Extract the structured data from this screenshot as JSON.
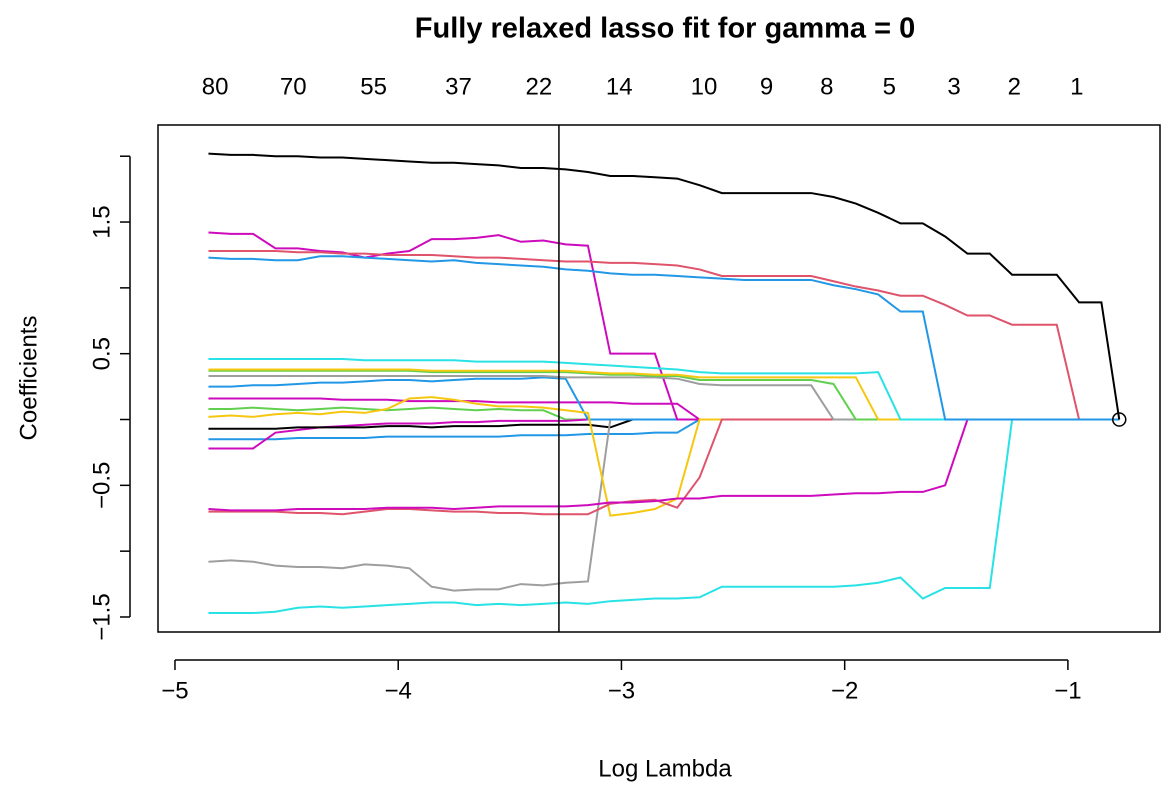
{
  "chart_data": {
    "type": "line",
    "title": "Fully relaxed lasso fit for gamma = 0",
    "x_label": "Log Lambda",
    "y_label": "Coefficients",
    "x": [
      -4.85,
      -4.75,
      -4.65,
      -4.55,
      -4.45,
      -4.35,
      -4.25,
      -4.15,
      -4.05,
      -3.95,
      -3.85,
      -3.75,
      -3.65,
      -3.55,
      -3.45,
      -3.35,
      -3.25,
      -3.15,
      -3.05,
      -2.95,
      -2.85,
      -2.75,
      -2.65,
      -2.55,
      -2.45,
      -2.35,
      -2.25,
      -2.15,
      -2.05,
      -1.95,
      -1.85,
      -1.75,
      -1.65,
      -1.55,
      -1.45,
      -1.35,
      -1.25,
      -1.15,
      -1.05,
      -0.95,
      -0.85,
      -0.77
    ],
    "series": [
      {
        "color": "#CD0BBC",
        "values": [
          0.16,
          0.16,
          0.16,
          0.16,
          0.16,
          0.16,
          0.15,
          0.15,
          0.15,
          0.14,
          0.14,
          0.14,
          0.14,
          0.13,
          0.13,
          0.13,
          0.13,
          0.13,
          0.13,
          0.12,
          0.12,
          0.12,
          0,
          0,
          0,
          0,
          0,
          0,
          0,
          0,
          0,
          0,
          0,
          0,
          0,
          0,
          0,
          0,
          0,
          0,
          0,
          0
        ]
      },
      {
        "color": "#61D04F",
        "values": [
          0.08,
          0.08,
          0.09,
          0.08,
          0.07,
          0.08,
          0.09,
          0.08,
          0.07,
          0.08,
          0.09,
          0.08,
          0.07,
          0.08,
          0.07,
          0.07,
          0,
          0,
          0,
          0,
          0,
          0,
          0,
          0,
          0,
          0,
          0,
          0,
          0,
          0,
          0,
          0,
          0,
          0,
          0,
          0,
          0,
          0,
          0,
          0,
          0,
          0
        ]
      },
      {
        "color": "#2297E6",
        "values": [
          -0.15,
          -0.15,
          -0.15,
          -0.15,
          -0.14,
          -0.14,
          -0.14,
          -0.14,
          -0.13,
          -0.13,
          -0.13,
          -0.13,
          -0.13,
          -0.13,
          -0.12,
          -0.12,
          -0.12,
          -0.11,
          -0.11,
          -0.11,
          -0.1,
          -0.1,
          0,
          0,
          0,
          0,
          0,
          0,
          0,
          0,
          0,
          0,
          0,
          0,
          0,
          0,
          0,
          0,
          0,
          0,
          0,
          0
        ]
      },
      {
        "color": "#CD0BBC",
        "values": [
          -0.22,
          -0.22,
          -0.22,
          -0.1,
          -0.08,
          -0.06,
          -0.05,
          -0.04,
          -0.03,
          -0.03,
          -0.03,
          -0.02,
          -0.02,
          -0.01,
          -0.01,
          -0.01,
          -0.01,
          0,
          0,
          0,
          0,
          0,
          0,
          0,
          0,
          0,
          0,
          0,
          0,
          0,
          0,
          0,
          0,
          0,
          0,
          0,
          0,
          0,
          0,
          0,
          0,
          0
        ]
      },
      {
        "color": "#000000",
        "values": [
          -0.07,
          -0.07,
          -0.07,
          -0.07,
          -0.06,
          -0.06,
          -0.06,
          -0.06,
          -0.05,
          -0.05,
          -0.06,
          -0.05,
          -0.05,
          -0.05,
          -0.04,
          -0.04,
          -0.04,
          -0.04,
          -0.06,
          0,
          0,
          0,
          0,
          0,
          0,
          0,
          0,
          0,
          0,
          0,
          0,
          0,
          0,
          0,
          0,
          0,
          0,
          0,
          0,
          0,
          0,
          0
        ]
      },
      {
        "color": "#9E9E9E",
        "values": [
          -1.08,
          -1.07,
          -1.08,
          -1.11,
          -1.12,
          -1.12,
          -1.13,
          -1.1,
          -1.11,
          -1.13,
          -1.27,
          -1.3,
          -1.29,
          -1.29,
          -1.25,
          -1.26,
          -1.24,
          -1.23,
          0,
          0,
          0,
          0,
          0,
          0,
          0,
          0,
          0,
          0,
          0,
          0,
          0,
          0,
          0,
          0,
          0,
          0,
          0,
          0,
          0,
          0,
          0,
          0
        ]
      },
      {
        "color": "#2297E6",
        "values": [
          0.25,
          0.25,
          0.26,
          0.26,
          0.27,
          0.28,
          0.28,
          0.29,
          0.3,
          0.3,
          0.29,
          0.3,
          0.31,
          0.31,
          0.31,
          0.32,
          0.31,
          0,
          0,
          0,
          0,
          0,
          0,
          0,
          0,
          0,
          0,
          0,
          0,
          0,
          0,
          0,
          0,
          0,
          0,
          0,
          0,
          0,
          0,
          0,
          0,
          0
        ]
      },
      {
        "color": "#CD0BBC",
        "values": [
          1.42,
          1.41,
          1.41,
          1.3,
          1.3,
          1.28,
          1.27,
          1.23,
          1.26,
          1.28,
          1.37,
          1.37,
          1.38,
          1.4,
          1.35,
          1.36,
          1.33,
          1.32,
          0.5,
          0.5,
          0.5,
          0,
          0,
          0,
          0,
          0,
          0,
          0,
          0,
          0,
          0,
          0,
          0,
          0,
          0,
          0,
          0,
          0,
          0,
          0,
          0,
          0
        ]
      },
      {
        "color": "#F5C710",
        "values": [
          0.02,
          0.03,
          0.02,
          0.04,
          0.05,
          0.04,
          0.06,
          0.05,
          0.08,
          0.16,
          0.17,
          0.15,
          0.12,
          0.1,
          0.1,
          0.09,
          0.07,
          0.05,
          -0.73,
          -0.71,
          -0.68,
          -0.6,
          0,
          0,
          0,
          0,
          0,
          0,
          0,
          0,
          0,
          0,
          0,
          0,
          0,
          0,
          0,
          0,
          0,
          0,
          0,
          0
        ]
      },
      {
        "color": "#DF536B",
        "values": [
          -0.7,
          -0.7,
          -0.7,
          -0.7,
          -0.71,
          -0.71,
          -0.72,
          -0.7,
          -0.68,
          -0.68,
          -0.69,
          -0.7,
          -0.7,
          -0.71,
          -0.71,
          -0.72,
          -0.72,
          -0.72,
          -0.64,
          -0.62,
          -0.61,
          -0.67,
          -0.44,
          0,
          0,
          0,
          0,
          0,
          0,
          0,
          0,
          0,
          0,
          0,
          0,
          0,
          0,
          0,
          0,
          0,
          0,
          0
        ]
      },
      {
        "color": "#9E9E9E",
        "values": [
          0.33,
          0.33,
          0.33,
          0.33,
          0.33,
          0.33,
          0.33,
          0.33,
          0.33,
          0.33,
          0.33,
          0.33,
          0.33,
          0.33,
          0.33,
          0.33,
          0.32,
          0.32,
          0.32,
          0.32,
          0.32,
          0.31,
          0.27,
          0.26,
          0.26,
          0.26,
          0.26,
          0.26,
          0,
          0,
          0,
          0,
          0,
          0,
          0,
          0,
          0,
          0,
          0,
          0,
          0,
          0
        ]
      },
      {
        "color": "#61D04F",
        "values": [
          0.37,
          0.37,
          0.37,
          0.37,
          0.37,
          0.37,
          0.37,
          0.37,
          0.37,
          0.37,
          0.36,
          0.36,
          0.36,
          0.36,
          0.36,
          0.36,
          0.36,
          0.35,
          0.34,
          0.34,
          0.33,
          0.33,
          0.3,
          0.3,
          0.3,
          0.3,
          0.3,
          0.3,
          0.27,
          0,
          0,
          0,
          0,
          0,
          0,
          0,
          0,
          0,
          0,
          0,
          0,
          0
        ]
      },
      {
        "color": "#F5C710",
        "values": [
          0.38,
          0.38,
          0.38,
          0.38,
          0.38,
          0.38,
          0.38,
          0.38,
          0.38,
          0.38,
          0.37,
          0.37,
          0.37,
          0.37,
          0.37,
          0.37,
          0.37,
          0.36,
          0.35,
          0.35,
          0.34,
          0.34,
          0.32,
          0.32,
          0.32,
          0.32,
          0.32,
          0.32,
          0.32,
          0.32,
          0,
          0,
          0,
          0,
          0,
          0,
          0,
          0,
          0,
          0,
          0,
          0
        ]
      },
      {
        "color": "#28E2E5",
        "values": [
          0.46,
          0.46,
          0.46,
          0.46,
          0.46,
          0.46,
          0.46,
          0.45,
          0.45,
          0.45,
          0.45,
          0.45,
          0.44,
          0.44,
          0.44,
          0.44,
          0.43,
          0.42,
          0.41,
          0.4,
          0.39,
          0.38,
          0.36,
          0.35,
          0.35,
          0.35,
          0.35,
          0.35,
          0.35,
          0.35,
          0.36,
          0,
          0,
          0,
          0,
          0,
          0,
          0,
          0,
          0,
          0,
          0
        ]
      },
      {
        "color": "#CD0BBC",
        "values": [
          -0.68,
          -0.69,
          -0.69,
          -0.69,
          -0.68,
          -0.68,
          -0.68,
          -0.68,
          -0.67,
          -0.67,
          -0.67,
          -0.68,
          -0.67,
          -0.66,
          -0.66,
          -0.66,
          -0.66,
          -0.65,
          -0.63,
          -0.63,
          -0.62,
          -0.6,
          -0.6,
          -0.58,
          -0.58,
          -0.58,
          -0.58,
          -0.58,
          -0.57,
          -0.56,
          -0.56,
          -0.55,
          -0.55,
          -0.5,
          0,
          0,
          0,
          0,
          0,
          0,
          0,
          0
        ]
      },
      {
        "color": "#28E2E5",
        "values": [
          -1.47,
          -1.47,
          -1.47,
          -1.46,
          -1.43,
          -1.42,
          -1.43,
          -1.42,
          -1.41,
          -1.4,
          -1.39,
          -1.39,
          -1.41,
          -1.4,
          -1.41,
          -1.4,
          -1.39,
          -1.4,
          -1.38,
          -1.37,
          -1.36,
          -1.36,
          -1.35,
          -1.27,
          -1.27,
          -1.27,
          -1.27,
          -1.27,
          -1.27,
          -1.26,
          -1.24,
          -1.2,
          -1.36,
          -1.28,
          -1.28,
          -1.28,
          0,
          0,
          0,
          0,
          0,
          0
        ]
      },
      {
        "color": "#DF536B",
        "values": [
          1.28,
          1.28,
          1.28,
          1.28,
          1.27,
          1.27,
          1.26,
          1.26,
          1.25,
          1.25,
          1.25,
          1.24,
          1.23,
          1.23,
          1.22,
          1.21,
          1.2,
          1.2,
          1.19,
          1.19,
          1.18,
          1.17,
          1.14,
          1.09,
          1.09,
          1.09,
          1.09,
          1.09,
          1.05,
          1.01,
          0.98,
          0.94,
          0.94,
          0.87,
          0.79,
          0.79,
          0.72,
          0.72,
          0.72,
          0,
          0,
          0
        ]
      },
      {
        "color": "#2297E6",
        "values": [
          1.23,
          1.22,
          1.22,
          1.21,
          1.21,
          1.24,
          1.24,
          1.23,
          1.22,
          1.21,
          1.2,
          1.21,
          1.19,
          1.18,
          1.17,
          1.16,
          1.14,
          1.13,
          1.11,
          1.1,
          1.1,
          1.09,
          1.08,
          1.07,
          1.06,
          1.06,
          1.06,
          1.06,
          1.02,
          0.99,
          0.95,
          0.82,
          0.82,
          0,
          0,
          0,
          0,
          0,
          0,
          0,
          0,
          0
        ]
      },
      {
        "color": "#000000",
        "values": [
          2.02,
          2.01,
          2.01,
          2.0,
          2.0,
          1.99,
          1.99,
          1.98,
          1.97,
          1.96,
          1.95,
          1.95,
          1.94,
          1.93,
          1.91,
          1.91,
          1.9,
          1.88,
          1.85,
          1.85,
          1.84,
          1.83,
          1.78,
          1.72,
          1.72,
          1.72,
          1.72,
          1.72,
          1.69,
          1.64,
          1.57,
          1.49,
          1.49,
          1.39,
          1.26,
          1.26,
          1.1,
          1.1,
          1.1,
          0.89,
          0.89,
          0
        ]
      }
    ],
    "vline": -3.28,
    "end_marker": {
      "x": -0.77,
      "y": 0
    },
    "xlim": [
      -5.076,
      -0.583
    ],
    "ylim": [
      -1.614,
      2.237
    ],
    "xticks": [
      {
        "value": -5,
        "label": "−5"
      },
      {
        "value": -4,
        "label": "−4"
      },
      {
        "value": -3,
        "label": "−3"
      },
      {
        "value": -2,
        "label": "−2"
      },
      {
        "value": -1,
        "label": "−1"
      }
    ],
    "yticks": [
      {
        "value": -1.5,
        "label": "−1.5"
      },
      {
        "value": -1,
        "label": null
      },
      {
        "value": -0.5,
        "label": "−0.5"
      },
      {
        "value": 0,
        "label": null
      },
      0.5,
      {
        "value": 1,
        "label": null
      },
      1.5,
      {
        "value": 2,
        "label": null
      }
    ],
    "top_ticks": [
      {
        "value": -4.82,
        "label": "80"
      },
      {
        "value": -4.47,
        "label": "70"
      },
      {
        "value": -4.11,
        "label": "55"
      },
      {
        "value": -3.73,
        "label": "37"
      },
      {
        "value": -3.37,
        "label": "22"
      },
      {
        "value": -3.01,
        "label": "14"
      },
      {
        "value": -2.63,
        "label": "10"
      },
      {
        "value": -2.35,
        "label": "9"
      },
      {
        "value": -2.08,
        "label": "8"
      },
      {
        "value": -1.8,
        "label": "5"
      },
      {
        "value": -1.51,
        "label": "3"
      },
      {
        "value": -1.24,
        "label": "2"
      },
      {
        "value": -0.96,
        "label": "1"
      }
    ]
  }
}
